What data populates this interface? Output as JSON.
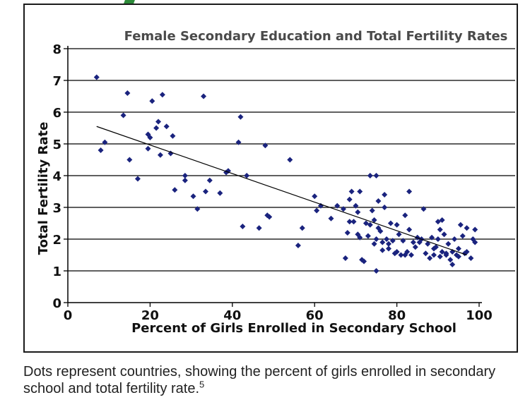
{
  "chart_data": {
    "type": "scatter",
    "title": "Female Secondary Education and Total Fertility Rates",
    "xlabel": "Percent of Girls Enrolled in Secondary School",
    "ylabel": "Total Fertility Rate",
    "xlim": [
      0,
      100
    ],
    "ylim": [
      0,
      8
    ],
    "x_ticks": [
      "0",
      "20",
      "40",
      "60",
      "80",
      "100"
    ],
    "y_ticks": [
      "0",
      "1",
      "2",
      "3",
      "4",
      "5",
      "6",
      "7",
      "8"
    ],
    "grid": "horizontal",
    "marker_color": "#1a237e",
    "trend_line": {
      "x": [
        7,
        97
      ],
      "y": [
        5.55,
        1.5
      ]
    },
    "points": [
      [
        7,
        7.1
      ],
      [
        8,
        4.8
      ],
      [
        9,
        5.05
      ],
      [
        13.5,
        5.9
      ],
      [
        14.5,
        6.6
      ],
      [
        15,
        4.5
      ],
      [
        17,
        3.9
      ],
      [
        19.5,
        4.85
      ],
      [
        19.5,
        5.3
      ],
      [
        20,
        5.2
      ],
      [
        20.5,
        6.35
      ],
      [
        21.5,
        5.5
      ],
      [
        22,
        5.7
      ],
      [
        22.5,
        4.65
      ],
      [
        23,
        6.55
      ],
      [
        24,
        5.55
      ],
      [
        25,
        4.7
      ],
      [
        25.5,
        5.25
      ],
      [
        26,
        3.55
      ],
      [
        28.5,
        3.85
      ],
      [
        28.5,
        4.0
      ],
      [
        30.5,
        3.35
      ],
      [
        31.5,
        2.95
      ],
      [
        33,
        6.5
      ],
      [
        33.5,
        3.5
      ],
      [
        34.5,
        3.85
      ],
      [
        37,
        3.45
      ],
      [
        38.5,
        4.1
      ],
      [
        39,
        4.15
      ],
      [
        41.5,
        5.05
      ],
      [
        42,
        5.85
      ],
      [
        42.5,
        2.4
      ],
      [
        43.5,
        4.0
      ],
      [
        46.5,
        2.35
      ],
      [
        48,
        4.95
      ],
      [
        48.5,
        2.75
      ],
      [
        49,
        2.7
      ],
      [
        54,
        4.5
      ],
      [
        56,
        1.8
      ],
      [
        57,
        2.35
      ],
      [
        60,
        3.35
      ],
      [
        60.5,
        2.9
      ],
      [
        61.5,
        3.05
      ],
      [
        64,
        2.65
      ],
      [
        65.5,
        3.05
      ],
      [
        67,
        2.95
      ],
      [
        67.5,
        1.4
      ],
      [
        68,
        2.2
      ],
      [
        68.5,
        3.25
      ],
      [
        68.5,
        2.55
      ],
      [
        69,
        3.5
      ],
      [
        69.5,
        2.55
      ],
      [
        70,
        3.05
      ],
      [
        70.5,
        2.85
      ],
      [
        70.5,
        2.15
      ],
      [
        71,
        3.5
      ],
      [
        71,
        2.05
      ],
      [
        71.5,
        1.35
      ],
      [
        72,
        1.3
      ],
      [
        72.5,
        2.5
      ],
      [
        73,
        2.1
      ],
      [
        73.5,
        4.0
      ],
      [
        73.5,
        2.45
      ],
      [
        74,
        2.9
      ],
      [
        74.5,
        2.6
      ],
      [
        74.5,
        1.85
      ],
      [
        75,
        4.0
      ],
      [
        75,
        2.0
      ],
      [
        75,
        1.0
      ],
      [
        75.5,
        2.35
      ],
      [
        75.5,
        3.2
      ],
      [
        76,
        2.25
      ],
      [
        76.5,
        1.9
      ],
      [
        76.5,
        1.65
      ],
      [
        77,
        3.4
      ],
      [
        77,
        3.0
      ],
      [
        77.5,
        2.0
      ],
      [
        78,
        1.85
      ],
      [
        78,
        1.7
      ],
      [
        78.5,
        2.5
      ],
      [
        79,
        1.95
      ],
      [
        79.5,
        1.55
      ],
      [
        80,
        2.45
      ],
      [
        80,
        1.6
      ],
      [
        80.5,
        2.15
      ],
      [
        81,
        1.5
      ],
      [
        81.5,
        1.95
      ],
      [
        82,
        1.5
      ],
      [
        82,
        2.75
      ],
      [
        82.5,
        1.6
      ],
      [
        83,
        3.5
      ],
      [
        83,
        2.3
      ],
      [
        83.5,
        1.5
      ],
      [
        84,
        1.9
      ],
      [
        84.5,
        1.75
      ],
      [
        85,
        2.05
      ],
      [
        85.5,
        1.9
      ],
      [
        86,
        2.0
      ],
      [
        86.5,
        2.95
      ],
      [
        87,
        1.55
      ],
      [
        87.5,
        1.85
      ],
      [
        88,
        1.4
      ],
      [
        88.5,
        2.05
      ],
      [
        89,
        1.7
      ],
      [
        89,
        1.5
      ],
      [
        89.5,
        1.75
      ],
      [
        90,
        2.55
      ],
      [
        90,
        2.0
      ],
      [
        90.5,
        1.45
      ],
      [
        90.5,
        2.3
      ],
      [
        91,
        1.6
      ],
      [
        91,
        2.6
      ],
      [
        91.5,
        2.15
      ],
      [
        92,
        1.5
      ],
      [
        92,
        1.55
      ],
      [
        92.5,
        1.85
      ],
      [
        93,
        1.35
      ],
      [
        93.5,
        1.6
      ],
      [
        93.5,
        1.2
      ],
      [
        94,
        2.0
      ],
      [
        94.5,
        1.5
      ],
      [
        95,
        1.7
      ],
      [
        95,
        1.45
      ],
      [
        95.5,
        2.45
      ],
      [
        96,
        2.1
      ],
      [
        96.5,
        1.55
      ],
      [
        97,
        2.35
      ],
      [
        97,
        1.6
      ],
      [
        98,
        1.4
      ],
      [
        98.5,
        2.0
      ],
      [
        99,
        1.9
      ],
      [
        99,
        2.3
      ]
    ]
  },
  "caption": {
    "text": "Dots represent countries, showing the percent of girls enrolled in secondary school and total fertility rate.",
    "footnote": "5"
  }
}
